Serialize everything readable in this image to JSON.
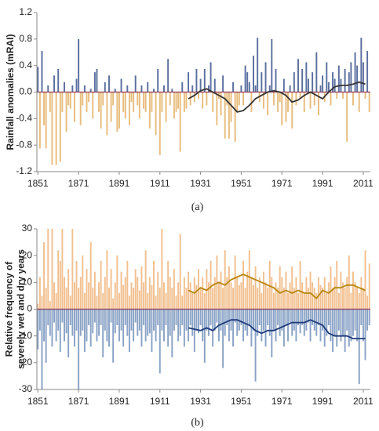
{
  "chart_data": [
    {
      "type": "bar",
      "caption": "(a)",
      "ylabel": [
        "Rainfall anomalies (mRAI)"
      ],
      "colors": {
        "positive": "#5b6f9f",
        "negative": "#e8bd7d",
        "zero_line": "#8e3a59"
      },
      "xlim": [
        1850.5,
        2014.5
      ],
      "xticks": [
        1851,
        1871,
        1891,
        1911,
        1931,
        1951,
        1971,
        1991,
        2011
      ],
      "ylim": [
        -1.2,
        1.2
      ],
      "yticks": [
        1.2,
        0.8,
        0.4,
        {
          "value": 0,
          "label": "0.0"
        },
        -0.4,
        -0.8,
        -1.2
      ],
      "x": [
        1851,
        1852,
        1853,
        1854,
        1855,
        1856,
        1857,
        1858,
        1859,
        1860,
        1861,
        1862,
        1863,
        1864,
        1865,
        1866,
        1867,
        1868,
        1869,
        1870,
        1871,
        1872,
        1873,
        1874,
        1875,
        1876,
        1877,
        1878,
        1879,
        1880,
        1881,
        1882,
        1883,
        1884,
        1885,
        1886,
        1887,
        1888,
        1889,
        1890,
        1891,
        1892,
        1893,
        1894,
        1895,
        1896,
        1897,
        1898,
        1899,
        1900,
        1901,
        1902,
        1903,
        1904,
        1905,
        1906,
        1907,
        1908,
        1909,
        1910,
        1911,
        1912,
        1913,
        1914,
        1915,
        1916,
        1917,
        1918,
        1919,
        1920,
        1921,
        1922,
        1923,
        1924,
        1925,
        1926,
        1927,
        1928,
        1929,
        1930,
        1931,
        1932,
        1933,
        1934,
        1935,
        1936,
        1937,
        1938,
        1939,
        1940,
        1941,
        1942,
        1943,
        1944,
        1945,
        1946,
        1947,
        1948,
        1949,
        1950,
        1951,
        1952,
        1953,
        1954,
        1955,
        1956,
        1957,
        1958,
        1959,
        1960,
        1961,
        1962,
        1963,
        1964,
        1965,
        1966,
        1967,
        1968,
        1969,
        1970,
        1971,
        1972,
        1973,
        1974,
        1975,
        1976,
        1977,
        1978,
        1979,
        1980,
        1981,
        1982,
        1983,
        1984,
        1985,
        1986,
        1987,
        1988,
        1989,
        1990,
        1991,
        1992,
        1993,
        1994,
        1995,
        1996,
        1997,
        1998,
        1999,
        2000,
        2001,
        2002,
        2003,
        2004,
        2005,
        2006,
        2007,
        2008,
        2009,
        2010,
        2011,
        2012,
        2013,
        2014
      ],
      "series": [
        {
          "values": [
            0.38,
            -0.85,
            0.62,
            -0.5,
            -0.85,
            0.1,
            -0.3,
            -1.1,
            0.25,
            -1.1,
            0.35,
            -1.05,
            -0.3,
            0.15,
            -0.6,
            -0.2,
            -0.25,
            0.1,
            -0.45,
            0.2,
            0.8,
            -0.5,
            -0.2,
            0.1,
            -0.3,
            -0.15,
            0.05,
            -0.4,
            0.3,
            0.35,
            -0.3,
            -0.55,
            -0.2,
            0.15,
            -0.65,
            0.25,
            -0.45,
            -0.2,
            0.05,
            -0.6,
            -0.55,
            0.2,
            -0.3,
            -0.4,
            0.1,
            -0.5,
            -0.15,
            -0.3,
            0.25,
            -0.2,
            -0.4,
            0.1,
            -0.25,
            -0.3,
            0.15,
            -0.55,
            -0.3,
            0.05,
            -0.65,
            0.35,
            -0.95,
            -0.3,
            0.1,
            -0.45,
            0.5,
            -0.2,
            0.05,
            -0.4,
            -0.3,
            -0.25,
            -0.9,
            0.15,
            -0.3,
            -0.25,
            0.3,
            -0.2,
            0.1,
            -0.15,
            0.35,
            -0.1,
            0.2,
            -0.25,
            0.35,
            -0.2,
            0.1,
            0.45,
            -0.3,
            0.2,
            -0.5,
            -0.1,
            -0.35,
            0.25,
            -0.7,
            -0.2,
            -0.7,
            -0.45,
            0.15,
            -0.75,
            -0.3,
            -0.2,
            0.1,
            -0.2,
            0.4,
            0.3,
            0.15,
            -0.3,
            0.55,
            0.1,
            0.82,
            -0.15,
            0.3,
            -0.25,
            0.45,
            -0.35,
            0.1,
            0.8,
            -0.2,
            0.35,
            -0.3,
            -0.15,
            -0.5,
            0.2,
            -0.45,
            -0.3,
            0.1,
            -0.55,
            0.3,
            -0.2,
            0.5,
            -0.1,
            0.35,
            -0.3,
            0.45,
            0.2,
            -0.25,
            0.3,
            -0.2,
            0.6,
            -0.35,
            0.1,
            0.25,
            -0.15,
            0.45,
            0.15,
            -0.2,
            0.3,
            0.2,
            -0.1,
            0.4,
            0.2,
            -0.1,
            0.35,
            -0.75,
            0.3,
            0.45,
            -0.2,
            0.6,
            0.4,
            -0.3,
            0.82,
            0.45,
            -0.1,
            0.62,
            -0.3
          ]
        }
      ],
      "lines": [
        {
          "color": "#333333",
          "x": [
            1925,
            1928,
            1931,
            1934,
            1937,
            1940,
            1943,
            1946,
            1949,
            1952,
            1955,
            1958,
            1961,
            1964,
            1967,
            1970,
            1973,
            1976,
            1979,
            1982,
            1985,
            1988,
            1991,
            1994,
            1997,
            2000,
            2003,
            2006,
            2009,
            2012
          ],
          "values": [
            -0.1,
            -0.05,
            0.02,
            0.05,
            0.0,
            -0.05,
            -0.1,
            -0.2,
            -0.3,
            -0.28,
            -0.2,
            -0.1,
            -0.05,
            0.0,
            0.02,
            0.0,
            -0.05,
            -0.15,
            -0.12,
            -0.05,
            0.0,
            -0.05,
            -0.1,
            0.0,
            0.08,
            0.1,
            0.1,
            0.12,
            0.15,
            0.12
          ]
        }
      ]
    },
    {
      "type": "bar",
      "caption": "(b)",
      "ylabel": [
        "Relative frequency of",
        "severely wet and dry years"
      ],
      "colors": {
        "zero_line": "#8e3a59"
      },
      "xlim": [
        1850.5,
        2014.5
      ],
      "xticks": [
        1851,
        1871,
        1891,
        1911,
        1931,
        1951,
        1971,
        1991,
        2011
      ],
      "ylim": [
        -30,
        30
      ],
      "yticks": [
        30,
        20,
        10,
        0,
        -10,
        -20,
        -30
      ],
      "x": [
        1851,
        1852,
        1853,
        1854,
        1855,
        1856,
        1857,
        1858,
        1859,
        1860,
        1861,
        1862,
        1863,
        1864,
        1865,
        1866,
        1867,
        1868,
        1869,
        1870,
        1871,
        1872,
        1873,
        1874,
        1875,
        1876,
        1877,
        1878,
        1879,
        1880,
        1881,
        1882,
        1883,
        1884,
        1885,
        1886,
        1887,
        1888,
        1889,
        1890,
        1891,
        1892,
        1893,
        1894,
        1895,
        1896,
        1897,
        1898,
        1899,
        1900,
        1901,
        1902,
        1903,
        1904,
        1905,
        1906,
        1907,
        1908,
        1909,
        1910,
        1911,
        1912,
        1913,
        1914,
        1915,
        1916,
        1917,
        1918,
        1919,
        1920,
        1921,
        1922,
        1923,
        1924,
        1925,
        1926,
        1927,
        1928,
        1929,
        1930,
        1931,
        1932,
        1933,
        1934,
        1935,
        1936,
        1937,
        1938,
        1939,
        1940,
        1941,
        1942,
        1943,
        1944,
        1945,
        1946,
        1947,
        1948,
        1949,
        1950,
        1951,
        1952,
        1953,
        1954,
        1955,
        1956,
        1957,
        1958,
        1959,
        1960,
        1961,
        1962,
        1963,
        1964,
        1965,
        1966,
        1967,
        1968,
        1969,
        1970,
        1971,
        1972,
        1973,
        1974,
        1975,
        1976,
        1977,
        1978,
        1979,
        1980,
        1981,
        1982,
        1983,
        1984,
        1985,
        1986,
        1987,
        1988,
        1989,
        1990,
        1991,
        1992,
        1993,
        1994,
        1995,
        1996,
        1997,
        1998,
        1999,
        2000,
        2001,
        2002,
        2003,
        2004,
        2005,
        2006,
        2007,
        2008,
        2009,
        2010,
        2011,
        2012,
        2013,
        2014
      ],
      "series": [
        {
          "color": "#f2c08f",
          "values": [
            2,
            12,
            5,
            25,
            8,
            30,
            3,
            30,
            10,
            6,
            22,
            18,
            30,
            12,
            8,
            15,
            5,
            30,
            10,
            18,
            8,
            12,
            20,
            6,
            15,
            10,
            25,
            8,
            14,
            5,
            10,
            18,
            6,
            12,
            22,
            8,
            15,
            4,
            10,
            20,
            6,
            14,
            9,
            12,
            18,
            5,
            10,
            8,
            15,
            12,
            7,
            16,
            10,
            22,
            6,
            12,
            9,
            18,
            5,
            14,
            8,
            30,
            10,
            6,
            18,
            12,
            8,
            15,
            5,
            10,
            28,
            5,
            12,
            8,
            14,
            10,
            6,
            12,
            9,
            15,
            8,
            12,
            6,
            15,
            10,
            18,
            8,
            12,
            20,
            10,
            14,
            8,
            22,
            12,
            16,
            10,
            8,
            20,
            12,
            9,
            10,
            18,
            8,
            14,
            22,
            12,
            9,
            16,
            8,
            12,
            6,
            14,
            10,
            8,
            18,
            12,
            6,
            10,
            8,
            16,
            12,
            8,
            14,
            6,
            10,
            16,
            8,
            12,
            6,
            18,
            10,
            6,
            12,
            8,
            14,
            10,
            8,
            6,
            12,
            9,
            8,
            12,
            6,
            10,
            16,
            8,
            12,
            18,
            6,
            14,
            10,
            8,
            12,
            20,
            6,
            14,
            10,
            8,
            6,
            12,
            8,
            22,
            5,
            17
          ]
        },
        {
          "color": "#8aa3c6",
          "values": [
            -15,
            -8,
            -30,
            -12,
            -20,
            -6,
            -10,
            -14,
            -5,
            -12,
            -8,
            -16,
            -5,
            -12,
            -9,
            -18,
            -6,
            -10,
            -14,
            -8,
            -30,
            -10,
            -8,
            -16,
            -12,
            -6,
            -14,
            -9,
            -5,
            -12,
            -10,
            -6,
            -18,
            -8,
            -12,
            -14,
            -5,
            -20,
            -9,
            -6,
            -12,
            -8,
            -14,
            -6,
            -10,
            -16,
            -8,
            -12,
            -5,
            -10,
            -8,
            -14,
            -6,
            -12,
            -10,
            -9,
            -16,
            -8,
            -12,
            -6,
            -24,
            -8,
            -12,
            -6,
            -14,
            -10,
            -18,
            -8,
            -6,
            -12,
            -10,
            -6,
            -14,
            -8,
            -12,
            -6,
            -10,
            -16,
            -8,
            -9,
            -6,
            -12,
            -20,
            -8,
            -10,
            -6,
            -14,
            -8,
            -5,
            -12,
            -8,
            -22,
            -10,
            -6,
            -12,
            -8,
            -14,
            -5,
            -10,
            -8,
            -6,
            -12,
            -8,
            -10,
            -6,
            -14,
            -8,
            -27,
            -10,
            -6,
            -12,
            -8,
            -14,
            -6,
            -10,
            -18,
            -8,
            -12,
            -6,
            -10,
            -8,
            -14,
            -6,
            -12,
            -5,
            -10,
            -8,
            -12,
            -6,
            -9,
            -6,
            -10,
            -8,
            -5,
            -12,
            -6,
            -8,
            -10,
            -6,
            -12,
            -8,
            -14,
            -10,
            -6,
            -12,
            -16,
            -10,
            -14,
            -8,
            -12,
            -10,
            -16,
            -8,
            -14,
            -12,
            -10,
            -8,
            -12,
            -28,
            -6,
            -12,
            -19,
            -8,
            -6
          ]
        }
      ],
      "lines": [
        {
          "color": "#b8860b",
          "x": [
            1925,
            1928,
            1931,
            1934,
            1937,
            1940,
            1943,
            1946,
            1949,
            1952,
            1955,
            1958,
            1961,
            1964,
            1967,
            1970,
            1973,
            1976,
            1979,
            1982,
            1985,
            1988,
            1991,
            1994,
            1997,
            2000,
            2003,
            2006,
            2009,
            2012
          ],
          "values": [
            7,
            6,
            8,
            7,
            9,
            10,
            9,
            11,
            12,
            13,
            12,
            11,
            10,
            9,
            8,
            6,
            7,
            6,
            7,
            6,
            6,
            4,
            7,
            6,
            8,
            8,
            9,
            9,
            8,
            7
          ]
        },
        {
          "color": "#1f3a7a",
          "x": [
            1925,
            1928,
            1931,
            1934,
            1937,
            1940,
            1943,
            1946,
            1949,
            1952,
            1955,
            1958,
            1961,
            1964,
            1967,
            1970,
            1973,
            1976,
            1979,
            1982,
            1985,
            1988,
            1991,
            1994,
            1997,
            2000,
            2003,
            2006,
            2009,
            2012
          ],
          "values": [
            -7,
            -7.5,
            -8,
            -7,
            -8,
            -6,
            -5,
            -4,
            -4,
            -5,
            -6,
            -8,
            -9,
            -8,
            -8,
            -7,
            -6,
            -5,
            -5,
            -5,
            -4,
            -5,
            -6,
            -9,
            -10,
            -10,
            -10,
            -11,
            -11,
            -11
          ]
        }
      ]
    }
  ]
}
